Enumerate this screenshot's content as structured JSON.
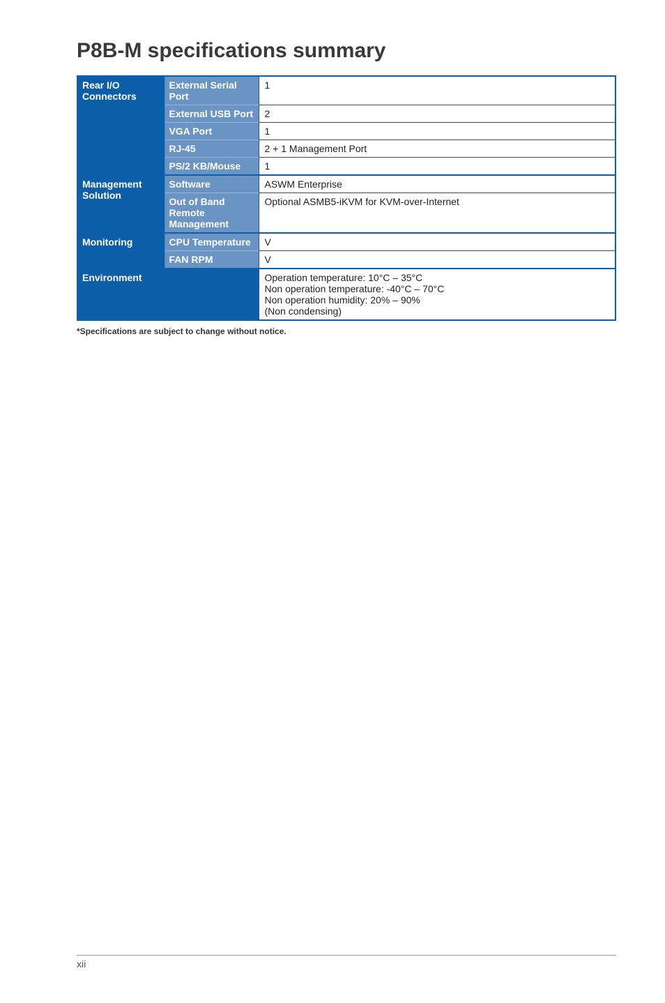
{
  "title": "P8B-M specifications summary",
  "groups": [
    {
      "category": "Rear I/O Connectors",
      "rows": [
        {
          "sub": "External Serial Port",
          "val": "1"
        },
        {
          "sub": "External USB Port",
          "val": "2"
        },
        {
          "sub": "VGA Port",
          "val": "1"
        },
        {
          "sub": "RJ-45",
          "val": "2 + 1 Management Port"
        },
        {
          "sub": "PS/2 KB/Mouse",
          "val": "1"
        }
      ]
    },
    {
      "category": "Management Solution",
      "rows": [
        {
          "sub": "Software",
          "val": "ASWM Enterprise"
        },
        {
          "sub": "Out of Band Remote Management",
          "val": "Optional ASMB5-iKVM for KVM-over-Internet"
        }
      ]
    },
    {
      "category": "Monitoring",
      "rows": [
        {
          "sub": "CPU Temperature",
          "val": "V"
        },
        {
          "sub": "FAN RPM",
          "val": "V"
        }
      ]
    }
  ],
  "environment": {
    "label": "Environment",
    "lines": [
      "Operation temperature: 10°C – 35°C",
      "Non operation temperature: -40°C – 70°C",
      "Non operation humidity: 20% – 90%",
      "(Non condensing)"
    ]
  },
  "footnote": "*Specifications are subject to change without notice.",
  "pageNumber": "xii",
  "colors": {
    "darkBlue": "#0d5ea8",
    "midBlue": "#6a94c4",
    "white": "#ffffff",
    "text": "#222222"
  }
}
